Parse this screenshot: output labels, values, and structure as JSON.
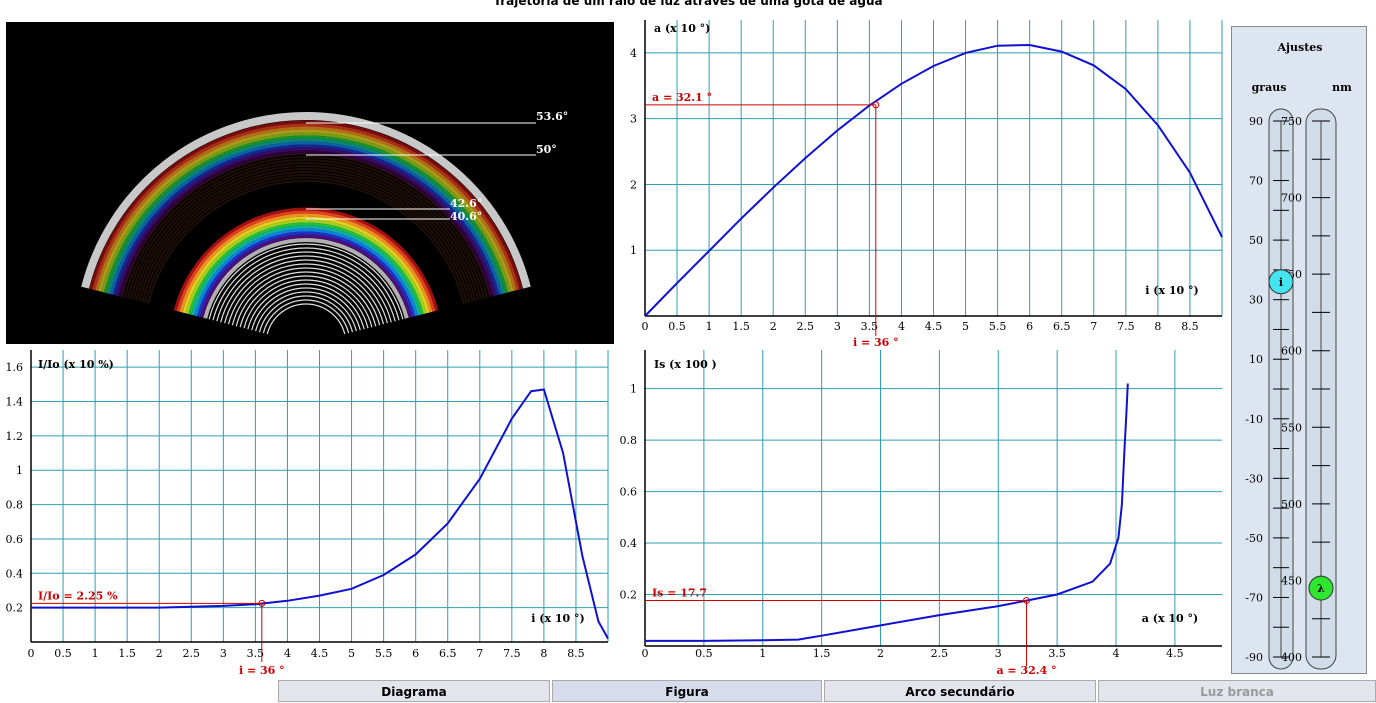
{
  "title": "Trajetória de um raio de luz através de uma gota de água",
  "rainbow": {
    "labels": [
      "53.6°",
      "50°",
      "42.6°",
      "40.6°"
    ]
  },
  "chart_data": [
    {
      "type": "line",
      "name": "deviation",
      "ylabel": "a (x 10 °)",
      "xlabel": "i (x 10 °)",
      "xlim": [
        0,
        9
      ],
      "ylim": [
        0,
        4.5
      ],
      "xticks": [
        "0",
        "0.5",
        "1",
        "1.5",
        "2",
        "2.5",
        "3",
        "3.5",
        "4",
        "4.5",
        "5",
        "5.5",
        "6",
        "6.5",
        "7",
        "7.5",
        "8",
        "8.5"
      ],
      "yticks": [
        "1",
        "2",
        "3",
        "4"
      ],
      "x": [
        0,
        0.5,
        1,
        1.5,
        2,
        2.5,
        3,
        3.5,
        4,
        4.5,
        5,
        5.5,
        6,
        6.5,
        7,
        7.5,
        8,
        8.5,
        9
      ],
      "y": [
        0,
        0.5,
        0.99,
        1.48,
        1.95,
        2.4,
        2.82,
        3.2,
        3.53,
        3.8,
        4.0,
        4.11,
        4.12,
        4.02,
        3.81,
        3.45,
        2.9,
        2.18,
        1.2
      ],
      "marker": {
        "x": 3.6,
        "y": 3.21
      },
      "marker_x_label": "i = 36 °",
      "marker_y_label": "a = 32.1 °"
    },
    {
      "type": "line",
      "name": "intensity",
      "ylabel": "I/Io (x 10 %)",
      "xlabel": "i (x 10 °)",
      "xlim": [
        0,
        9
      ],
      "ylim": [
        0,
        1.7
      ],
      "xticks": [
        "0",
        "0.5",
        "1",
        "1.5",
        "2",
        "2.5",
        "3",
        "3.5",
        "4",
        "4.5",
        "5",
        "5.5",
        "6",
        "6.5",
        "7",
        "7.5",
        "8",
        "8.5"
      ],
      "yticks": [
        "0.2",
        "0.4",
        "0.6",
        "0.8",
        "1",
        "1.2",
        "1.4",
        "1.6"
      ],
      "x": [
        0,
        0.5,
        1,
        1.5,
        2,
        2.5,
        3,
        3.5,
        4,
        4.5,
        5,
        5.5,
        6,
        6.5,
        7,
        7.5,
        7.8,
        8,
        8.3,
        8.6,
        8.85,
        9
      ],
      "y": [
        0.2,
        0.2,
        0.2,
        0.2,
        0.2,
        0.205,
        0.21,
        0.22,
        0.24,
        0.27,
        0.31,
        0.39,
        0.51,
        0.69,
        0.95,
        1.3,
        1.46,
        1.47,
        1.1,
        0.5,
        0.12,
        0.02
      ],
      "marker": {
        "x": 3.6,
        "y": 0.225
      },
      "marker_x_label": "i = 36 °",
      "marker_y_label": "I/Io = 2.25 %"
    },
    {
      "type": "line",
      "name": "spectral",
      "ylabel": "Is (x 100 )",
      "xlabel": "a (x 10 °)",
      "xlim": [
        0,
        4.9
      ],
      "ylim": [
        0,
        1.15
      ],
      "xticks": [
        "0",
        "0.5",
        "1",
        "1.5",
        "2",
        "2.5",
        "3",
        "3.5",
        "4",
        "4.5"
      ],
      "yticks": [
        "0.2",
        "0.4",
        "0.6",
        "0.8",
        "1"
      ],
      "x": [
        0,
        0.5,
        1,
        1.3,
        1.5,
        2,
        2.5,
        3,
        3.25,
        3.5,
        3.8,
        3.95,
        4.02,
        4.05,
        4.07,
        4.09,
        4.1
      ],
      "y": [
        0.02,
        0.02,
        0.022,
        0.025,
        0.04,
        0.08,
        0.12,
        0.155,
        0.177,
        0.2,
        0.25,
        0.32,
        0.42,
        0.55,
        0.75,
        0.92,
        1.02
      ],
      "marker": {
        "x": 3.24,
        "y": 0.177
      },
      "marker_x_label": "a = 32.4 °",
      "marker_y_label": "Is = 17.7"
    }
  ],
  "controls": {
    "title": "Ajustes",
    "graus_label": "graus",
    "nm_label": "nm",
    "graus_ticks": [
      "90",
      "70",
      "50",
      "30",
      "10",
      "-10",
      "-30",
      "-50",
      "-70",
      "-90"
    ],
    "nm_ticks": [
      "750",
      "700",
      "650",
      "600",
      "550",
      "500",
      "450",
      "400"
    ],
    "angle_value": 36,
    "wavelength_value": 445,
    "angle_knob": "i",
    "wavelength_knob": "λ",
    "angle_color": "#44e4f0",
    "wavelength_color": "#2ee62e"
  },
  "buttons": [
    {
      "label": "Diagrama",
      "state": "normal"
    },
    {
      "label": "Figura",
      "state": "active"
    },
    {
      "label": "Arco secundário",
      "state": "normal"
    },
    {
      "label": "Luz branca",
      "state": "disabled"
    }
  ],
  "colors": {
    "grid": "#2e9fb0",
    "curve": "#1010d0",
    "marker": "#cc0000"
  }
}
